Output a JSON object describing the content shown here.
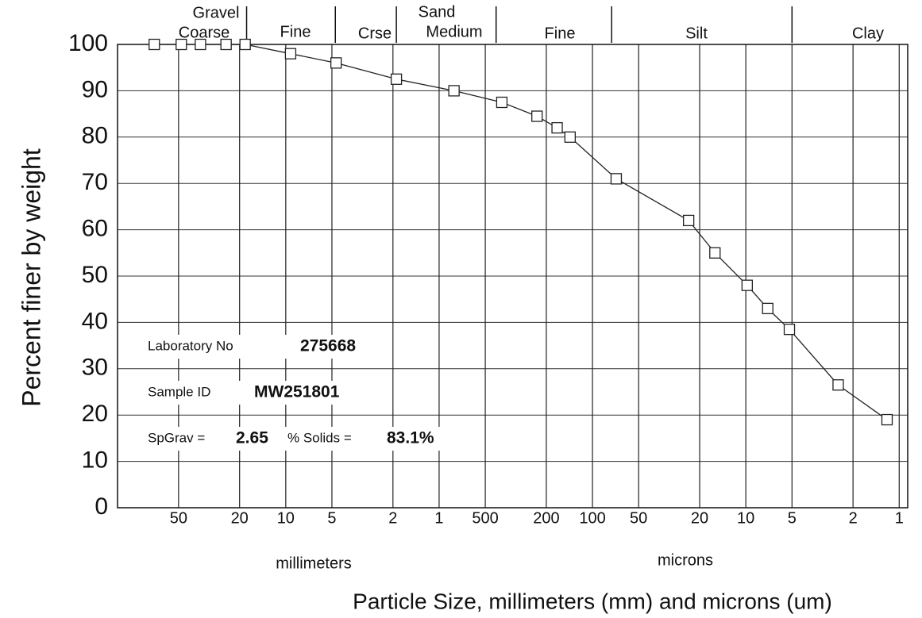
{
  "chart_data": {
    "type": "line",
    "y_label": "Percent finer by weight",
    "x_label": "Particle Size, millimeters (mm) and microns (um)",
    "x_unit_labels": [
      "millimeters",
      "microns"
    ],
    "size_classes": [
      "Gravel",
      "Coarse",
      "Fine",
      "Crse",
      "Sand",
      "Medium",
      "Fine",
      "Silt",
      "Clay"
    ],
    "class_boundaries": [
      18,
      4.75,
      1.9,
      0.425,
      0.075,
      0.005
    ],
    "log_x": true,
    "xlim": [
      125,
      0.00088
    ],
    "xticks": [
      50,
      20,
      10,
      5,
      2,
      1,
      {
        "value": 0.5,
        "label": "500"
      },
      {
        "value": 0.2,
        "label": "200"
      },
      {
        "value": 0.1,
        "label": "100"
      },
      {
        "value": 0.05,
        "label": "50"
      },
      {
        "value": 0.02,
        "label": "20"
      },
      {
        "value": 0.01,
        "label": "10"
      },
      {
        "value": 0.005,
        "label": "5"
      },
      {
        "value": 0.002,
        "label": "2"
      },
      {
        "value": 0.001,
        "label": "1"
      }
    ],
    "ylim": [
      0,
      100
    ],
    "yticks": [
      0,
      10,
      20,
      30,
      40,
      50,
      60,
      70,
      80,
      90,
      100
    ],
    "grid": true,
    "x": [
      72,
      48,
      36,
      24.5,
      18.4,
      9.3,
      4.7,
      1.9,
      0.8,
      0.39,
      0.23,
      0.17,
      0.14,
      0.07,
      0.0236,
      0.0159,
      0.0098,
      0.0072,
      0.0052,
      0.0025,
      0.0012
    ],
    "series": [
      {
        "color": "#222222",
        "values": [
          100,
          100,
          100,
          100,
          100,
          98,
          96,
          92.5,
          90,
          87.5,
          84.5,
          82,
          80,
          71,
          62,
          55,
          48,
          43,
          38.5,
          26.5,
          19
        ]
      }
    ],
    "annotations": {
      "lab_label": "Laboratory No",
      "lab_no": "275668",
      "sample_label": "Sample ID",
      "sample_id": "MW251801",
      "spgrav_label": "SpGrav =",
      "spgrav": "2.65",
      "solids_label": "% Solids =",
      "solids": "83.1%"
    }
  }
}
